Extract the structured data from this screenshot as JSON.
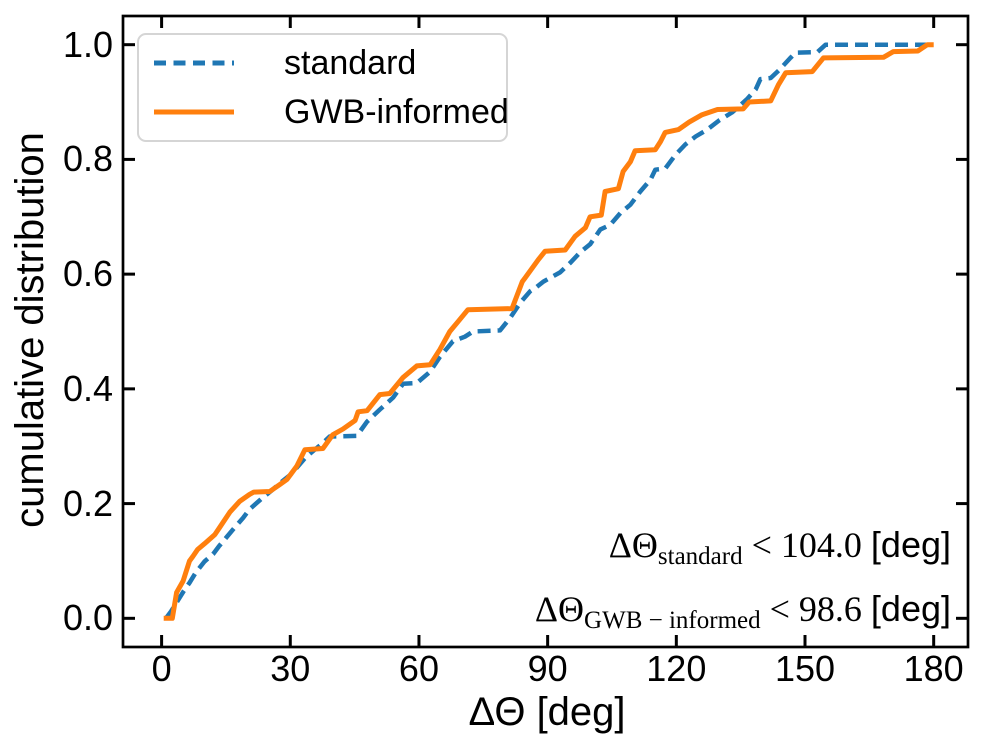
{
  "figure": {
    "background": "#ffffff",
    "spine_color": "#000000",
    "text_color": "#000000",
    "legend_border_color": "#d5d5d5"
  },
  "chart_data": {
    "type": "line",
    "title": "",
    "xlabel": "ΔΘ [deg]",
    "ylabel": "cumulative distribution",
    "xlim": [
      -9,
      188
    ],
    "ylim": [
      -0.05,
      1.05
    ],
    "grid": false,
    "xticks": [
      0,
      30,
      60,
      90,
      120,
      150,
      180
    ],
    "xtick_labels": [
      "0",
      "30",
      "60",
      "90",
      "120",
      "150",
      "180"
    ],
    "yticks": [
      0.0,
      0.2,
      0.4,
      0.6,
      0.8,
      1.0
    ],
    "ytick_labels": [
      "0.0",
      "0.2",
      "0.4",
      "0.6",
      "0.8",
      "1.0"
    ],
    "legend": {
      "position": "upper left",
      "items": [
        {
          "label": "standard",
          "color": "#1f77b4",
          "style": "dashed"
        },
        {
          "label": "GWB-informed",
          "color": "#ff7f0e",
          "style": "solid"
        }
      ]
    },
    "series": [
      {
        "name": "standard",
        "color": "#1f77b4",
        "style": "dashed",
        "dash": "13 7",
        "width": 4.5,
        "points": [
          [
            1,
            0
          ],
          [
            2.2,
            0.012
          ],
          [
            3.7,
            0.03
          ],
          [
            5.2,
            0.048
          ],
          [
            6.5,
            0.062
          ],
          [
            8,
            0.08
          ],
          [
            10,
            0.099
          ],
          [
            12,
            0.112
          ],
          [
            13.3,
            0.125
          ],
          [
            15,
            0.14
          ],
          [
            17,
            0.158
          ],
          [
            19,
            0.175
          ],
          [
            20.5,
            0.19
          ],
          [
            22,
            0.2
          ],
          [
            23.5,
            0.21
          ],
          [
            25.5,
            0.222
          ],
          [
            28,
            0.238
          ],
          [
            30,
            0.25
          ],
          [
            31.8,
            0.265
          ],
          [
            33.5,
            0.28
          ],
          [
            35.7,
            0.294
          ],
          [
            37.5,
            0.305
          ],
          [
            39.2,
            0.317
          ],
          [
            45.5,
            0.318
          ],
          [
            47.9,
            0.343
          ],
          [
            50.9,
            0.364
          ],
          [
            54,
            0.385
          ],
          [
            56.3,
            0.409
          ],
          [
            59.5,
            0.41
          ],
          [
            62.6,
            0.43
          ],
          [
            64.9,
            0.456
          ],
          [
            67.9,
            0.483
          ],
          [
            70.7,
            0.491
          ],
          [
            72.6,
            0.5
          ],
          [
            78.9,
            0.502
          ],
          [
            81.3,
            0.524
          ],
          [
            83.6,
            0.55
          ],
          [
            85.9,
            0.57
          ],
          [
            87.5,
            0.578
          ],
          [
            89,
            0.587
          ],
          [
            92.9,
            0.603
          ],
          [
            95.3,
            0.62
          ],
          [
            97.6,
            0.638
          ],
          [
            99.9,
            0.652
          ],
          [
            102.3,
            0.678
          ],
          [
            104.6,
            0.686
          ],
          [
            107,
            0.707
          ],
          [
            109.3,
            0.721
          ],
          [
            111.6,
            0.744
          ],
          [
            114,
            0.765
          ],
          [
            115.1,
            0.782
          ],
          [
            117.4,
            0.784
          ],
          [
            119.8,
            0.808
          ],
          [
            122.1,
            0.826
          ],
          [
            124.5,
            0.84
          ],
          [
            127.2,
            0.852
          ],
          [
            130,
            0.868
          ],
          [
            133,
            0.882
          ],
          [
            135,
            0.895
          ],
          [
            136.6,
            0.906
          ],
          [
            138.5,
            0.922
          ],
          [
            139.6,
            0.94
          ],
          [
            142,
            0.942
          ],
          [
            144,
            0.956
          ],
          [
            146.6,
            0.977
          ],
          [
            147.8,
            0.986
          ],
          [
            152.9,
            0.987
          ],
          [
            154.8,
            1.0
          ],
          [
            180,
            1.0
          ]
        ]
      },
      {
        "name": "GWB-informed",
        "color": "#ff7f0e",
        "style": "solid",
        "dash": null,
        "width": 5,
        "points": [
          [
            0.5,
            0
          ],
          [
            2.5,
            0
          ],
          [
            3.5,
            0.045
          ],
          [
            5,
            0.065
          ],
          [
            6.5,
            0.1
          ],
          [
            7.3,
            0.108
          ],
          [
            8.4,
            0.12
          ],
          [
            10,
            0.13
          ],
          [
            12.4,
            0.146
          ],
          [
            13.5,
            0.158
          ],
          [
            15.9,
            0.185
          ],
          [
            18.2,
            0.204
          ],
          [
            20.5,
            0.216
          ],
          [
            21.5,
            0.22
          ],
          [
            25.2,
            0.221
          ],
          [
            27.5,
            0.233
          ],
          [
            29.2,
            0.242
          ],
          [
            31.5,
            0.265
          ],
          [
            33.4,
            0.294
          ],
          [
            37.6,
            0.296
          ],
          [
            39.9,
            0.32
          ],
          [
            42.3,
            0.33
          ],
          [
            45.1,
            0.345
          ],
          [
            45.8,
            0.36
          ],
          [
            47.9,
            0.362
          ],
          [
            50.9,
            0.39
          ],
          [
            53.2,
            0.392
          ],
          [
            56.3,
            0.42
          ],
          [
            59.5,
            0.44
          ],
          [
            62.6,
            0.442
          ],
          [
            64.9,
            0.469
          ],
          [
            67.2,
            0.5
          ],
          [
            69.1,
            0.517
          ],
          [
            71.4,
            0.538
          ],
          [
            81.7,
            0.54
          ],
          [
            84.1,
            0.587
          ],
          [
            84.8,
            0.594
          ],
          [
            87.8,
            0.625
          ],
          [
            89.4,
            0.64
          ],
          [
            94.1,
            0.642
          ],
          [
            96.4,
            0.666
          ],
          [
            98.8,
            0.681
          ],
          [
            99.9,
            0.7
          ],
          [
            102.5,
            0.703
          ],
          [
            103.4,
            0.744
          ],
          [
            106.5,
            0.749
          ],
          [
            107.6,
            0.779
          ],
          [
            109.3,
            0.796
          ],
          [
            110.4,
            0.815
          ],
          [
            115.1,
            0.817
          ],
          [
            116.3,
            0.831
          ],
          [
            117.4,
            0.847
          ],
          [
            120.5,
            0.852
          ],
          [
            123,
            0.865
          ],
          [
            126,
            0.878
          ],
          [
            129.6,
            0.887
          ],
          [
            135.6,
            0.888
          ],
          [
            137,
            0.9
          ],
          [
            142,
            0.902
          ],
          [
            143.8,
            0.93
          ],
          [
            145.5,
            0.951
          ],
          [
            151.7,
            0.953
          ],
          [
            154.3,
            0.977
          ],
          [
            168.3,
            0.978
          ],
          [
            170.6,
            0.988
          ],
          [
            176.3,
            0.989
          ],
          [
            178.5,
            1.0
          ],
          [
            180,
            1.0
          ]
        ]
      }
    ],
    "annotations": [
      {
        "lhs": "ΔΘ",
        "subscript": "standard",
        "relation": " < 104.0 ",
        "value": 104.0,
        "unit": "[deg]"
      },
      {
        "lhs": "ΔΘ",
        "subscript": "GWB − informed",
        "relation": " < 98.6 ",
        "value": 98.6,
        "unit": "[deg]"
      }
    ]
  }
}
